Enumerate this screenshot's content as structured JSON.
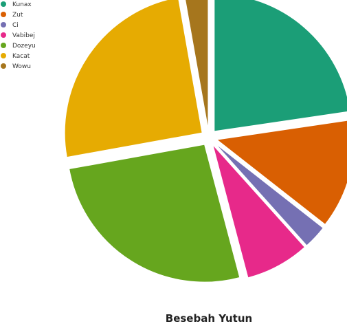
{
  "chart_data": {
    "type": "pie",
    "title": "Besebah Yutun",
    "legend_position": "top-left",
    "exploded": true,
    "series": [
      {
        "name": "Kunax",
        "value": 22,
        "color": "#1b9e77"
      },
      {
        "name": "Zut",
        "value": 12.5,
        "color": "#d95f02"
      },
      {
        "name": "Ci",
        "value": 2.7,
        "color": "#7570b3"
      },
      {
        "name": "Vabibej",
        "value": 7.3,
        "color": "#e7298a"
      },
      {
        "name": "Dozeyu",
        "value": 25.5,
        "color": "#66a61e"
      },
      {
        "name": "Kacat",
        "value": 24.3,
        "color": "#e6ab02"
      },
      {
        "name": "Wowu",
        "value": 2.7,
        "color": "#a6761d"
      }
    ]
  }
}
